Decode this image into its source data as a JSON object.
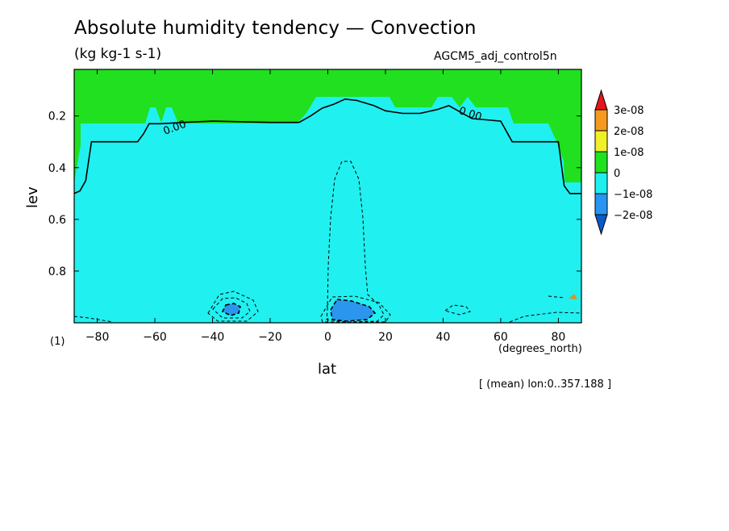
{
  "header": {
    "title": "Absolute humidity tendency — Convection",
    "units": "(kg kg-1 s-1)",
    "dataset": "AGCM5_adj_control5n"
  },
  "footer": {
    "units_number": "(1)",
    "x_units": "(degrees_north)",
    "mean_info": "[ (mean) lon:0..357.188 ]"
  },
  "chart_data": {
    "type": "heatmap",
    "title": "Absolute humidity tendency — Convection",
    "subtitle": "(kg kg-1 s-1)",
    "xlabel": "lat",
    "ylabel": "lev",
    "xlim": [
      -88,
      88
    ],
    "ylim": [
      1.0,
      0.02
    ],
    "x_ticks": [
      -80,
      -60,
      -40,
      -20,
      0,
      20,
      40,
      60,
      80
    ],
    "x_tick_labels": [
      "−80",
      "−60",
      "−40",
      "−20",
      "0",
      "20",
      "40",
      "60",
      "80"
    ],
    "y_ticks": [
      0.2,
      0.4,
      0.6,
      0.8
    ],
    "y_tick_labels": [
      "0.2",
      "0.4",
      "0.6",
      "0.8"
    ],
    "grid": false,
    "contour_label": "0.00",
    "zero_contour_lat": [
      -88,
      -86,
      -84,
      -82,
      -66,
      -64,
      -62,
      -58,
      -50,
      -40,
      -20,
      -10,
      -6,
      -2,
      2,
      6,
      10,
      16,
      20,
      26,
      32,
      38,
      42,
      50,
      60,
      64,
      68,
      80,
      82,
      84,
      88
    ],
    "zero_contour_lev": [
      0.5,
      0.49,
      0.45,
      0.3,
      0.3,
      0.27,
      0.23,
      0.23,
      0.225,
      0.22,
      0.225,
      0.225,
      0.2,
      0.17,
      0.155,
      0.135,
      0.14,
      0.16,
      0.18,
      0.19,
      0.19,
      0.175,
      0.16,
      0.21,
      0.22,
      0.3,
      0.3,
      0.3,
      0.47,
      0.5,
      0.5
    ],
    "legend": {
      "placement": "right",
      "labels": [
        "3e-08",
        "2e-08",
        "1e-08",
        "0",
        "−1e-08",
        "−2e-08"
      ],
      "colors": [
        "#e8141c",
        "#f59a1e",
        "#f0f028",
        "#1ee21e",
        "#1ef0f0",
        "#2896f0",
        "#0a5ac8"
      ]
    },
    "colors": {
      "positive_band": "#20e020",
      "negative_band": "#20f0f0",
      "strong_negative": "#2b96ed",
      "positive_moderate": "#cc9a2a"
    }
  }
}
